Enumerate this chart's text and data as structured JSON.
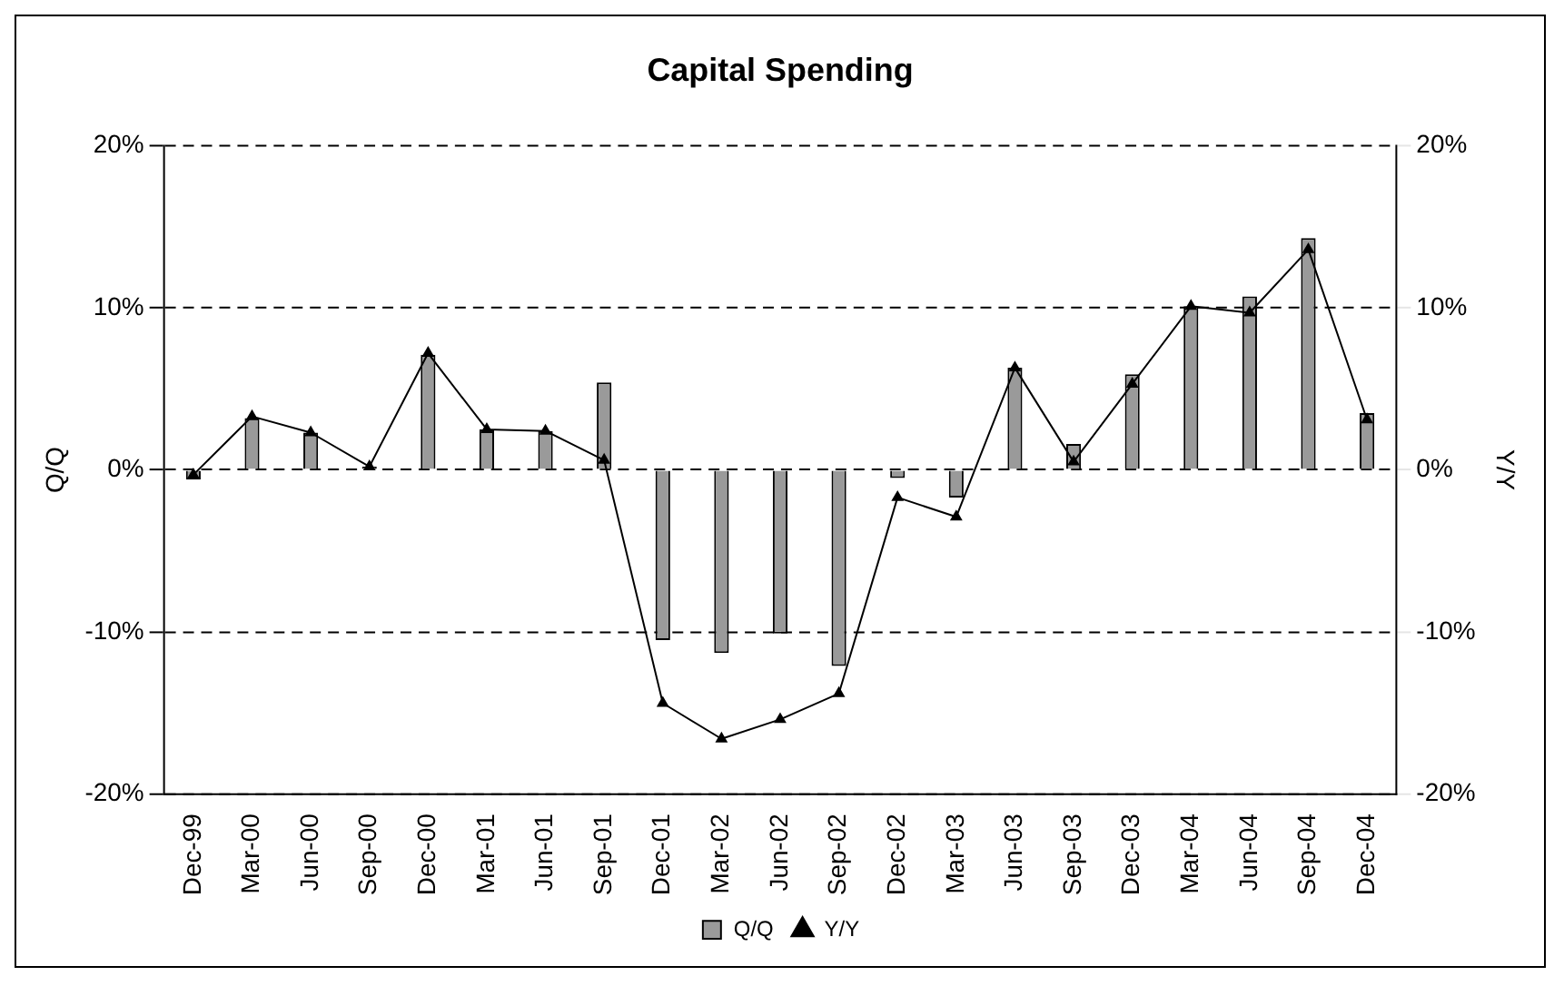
{
  "chart_data": {
    "type": "bar",
    "title": "Capital Spending",
    "ylabel": "Q/Q",
    "y2label": "Y/Y",
    "categories": [
      "Dec-99",
      "Mar-00",
      "Jun-00",
      "Sep-00",
      "Dec-00",
      "Mar-01",
      "Jun-01",
      "Sep-01",
      "Dec-01",
      "Mar-02",
      "Jun-02",
      "Sep-02",
      "Dec-02",
      "Mar-03",
      "Jun-03",
      "Sep-03",
      "Dec-03",
      "Mar-04",
      "Jun-04",
      "Sep-04",
      "Dec-04"
    ],
    "series": [
      {
        "name": "Q/Q",
        "color": "#9a9a9a",
        "values": [
          -0.6,
          3.2,
          2.3,
          0.2,
          7.1,
          2.5,
          2.4,
          5.4,
          -10.5,
          -11.3,
          -10.1,
          -12.1,
          -0.5,
          -1.7,
          6.3,
          1.6,
          5.9,
          10.1,
          10.7,
          14.3,
          3.5
        ]
      },
      {
        "name": "Y/Y",
        "type": "line",
        "axis": "y2",
        "color": "#000000",
        "marker": "triangle",
        "values": [
          -0.3,
          3.3,
          2.3,
          0.2,
          7.2,
          2.5,
          2.4,
          0.6,
          -14.4,
          -16.6,
          -15.4,
          -13.8,
          -1.7,
          -2.9,
          6.3,
          0.5,
          5.3,
          10.1,
          9.7,
          13.6,
          3.1
        ]
      }
    ],
    "ylim": [
      -20,
      20
    ],
    "yticks": [
      {
        "value": -20,
        "label": "-20%"
      },
      {
        "value": -10,
        "label": "-10%"
      },
      {
        "value": 0,
        "label": "0%"
      },
      {
        "value": 10,
        "label": "10%"
      },
      {
        "value": 20,
        "label": "20%"
      }
    ],
    "y2lim": [
      -20,
      20
    ],
    "y2ticks": [
      {
        "value": -20,
        "label": "-20%"
      },
      {
        "value": -10,
        "label": "-10%"
      },
      {
        "value": 0,
        "label": "0%"
      },
      {
        "value": 10,
        "label": "10%"
      },
      {
        "value": 20,
        "label": "20%"
      }
    ],
    "grid": "y",
    "line_style": "solid",
    "legend": "bottom"
  }
}
